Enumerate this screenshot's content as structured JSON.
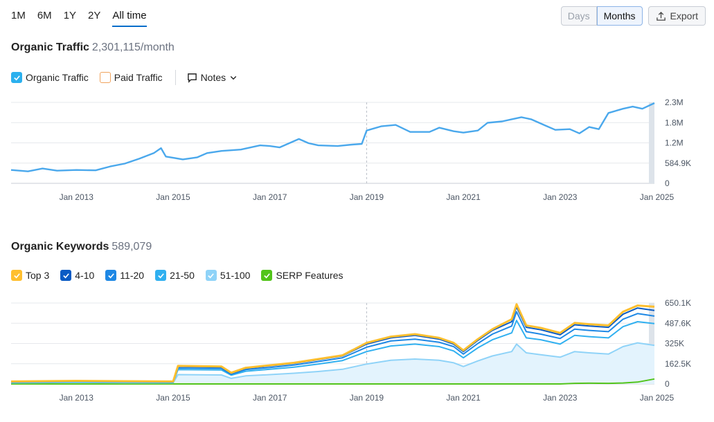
{
  "range_tabs": [
    "1M",
    "6M",
    "1Y",
    "2Y",
    "All time"
  ],
  "active_range": "All time",
  "granularity": {
    "days_label": "Days",
    "months_label": "Months",
    "active": "Months"
  },
  "export_label": "Export",
  "traffic": {
    "title": "Organic Traffic",
    "value": "2,301,115/month",
    "legend": [
      {
        "label": "Organic Traffic",
        "checked": true,
        "color": "#2bb0ee"
      },
      {
        "label": "Paid Traffic",
        "checked": false,
        "color": "#f0a35c"
      }
    ],
    "notes_label": "Notes"
  },
  "keywords": {
    "title": "Organic Keywords",
    "value": "589,079",
    "legend": [
      {
        "label": "Top 3",
        "color": "#ffbf2f"
      },
      {
        "label": "4-10",
        "color": "#0a5bc4"
      },
      {
        "label": "11-20",
        "color": "#1e88e5"
      },
      {
        "label": "21-50",
        "color": "#30b0f0"
      },
      {
        "label": "51-100",
        "color": "#8fd3f8"
      },
      {
        "label": "SERP Features",
        "color": "#52c41a"
      }
    ]
  },
  "chart_data": [
    {
      "type": "line",
      "title": "Organic Traffic",
      "x_ticks": [
        "Jan 2013",
        "Jan 2015",
        "Jan 2017",
        "Jan 2019",
        "Jan 2021",
        "Jan 2023",
        "Jan 2025"
      ],
      "y_ticks": [
        "0",
        "584.9K",
        "1.2M",
        "1.8M",
        "2.3M"
      ],
      "ylim": [
        0,
        2300000
      ],
      "x_range": [
        2011.65,
        2024.95
      ],
      "series": [
        {
          "name": "Organic Traffic",
          "color": "#4aa8ec",
          "points": [
            [
              2011.65,
              380000
            ],
            [
              2012.0,
              340000
            ],
            [
              2012.3,
              420000
            ],
            [
              2012.6,
              360000
            ],
            [
              2013.0,
              380000
            ],
            [
              2013.4,
              370000
            ],
            [
              2013.7,
              480000
            ],
            [
              2014.0,
              560000
            ],
            [
              2014.3,
              700000
            ],
            [
              2014.6,
              860000
            ],
            [
              2014.75,
              1000000
            ],
            [
              2014.85,
              760000
            ],
            [
              2015.2,
              680000
            ],
            [
              2015.5,
              740000
            ],
            [
              2015.7,
              860000
            ],
            [
              2016.0,
              920000
            ],
            [
              2016.4,
              960000
            ],
            [
              2016.8,
              1080000
            ],
            [
              2017.0,
              1060000
            ],
            [
              2017.2,
              1020000
            ],
            [
              2017.6,
              1260000
            ],
            [
              2017.8,
              1140000
            ],
            [
              2018.0,
              1080000
            ],
            [
              2018.4,
              1060000
            ],
            [
              2018.7,
              1100000
            ],
            [
              2018.9,
              1120000
            ],
            [
              2019.0,
              1500000
            ],
            [
              2019.3,
              1620000
            ],
            [
              2019.6,
              1660000
            ],
            [
              2019.9,
              1460000
            ],
            [
              2020.3,
              1460000
            ],
            [
              2020.5,
              1580000
            ],
            [
              2020.8,
              1480000
            ],
            [
              2021.0,
              1440000
            ],
            [
              2021.3,
              1500000
            ],
            [
              2021.5,
              1720000
            ],
            [
              2021.8,
              1760000
            ],
            [
              2022.0,
              1820000
            ],
            [
              2022.2,
              1880000
            ],
            [
              2022.4,
              1820000
            ],
            [
              2022.7,
              1640000
            ],
            [
              2022.9,
              1520000
            ],
            [
              2023.2,
              1540000
            ],
            [
              2023.4,
              1420000
            ],
            [
              2023.6,
              1600000
            ],
            [
              2023.8,
              1540000
            ],
            [
              2024.0,
              2000000
            ],
            [
              2024.3,
              2120000
            ],
            [
              2024.5,
              2180000
            ],
            [
              2024.7,
              2120000
            ],
            [
              2024.95,
              2280000
            ]
          ]
        }
      ]
    },
    {
      "type": "area",
      "title": "Organic Keywords",
      "x_ticks": [
        "Jan 2013",
        "Jan 2015",
        "Jan 2017",
        "Jan 2019",
        "Jan 2021",
        "Jan 2023",
        "Jan 2025"
      ],
      "y_ticks": [
        "0",
        "162.5K",
        "325K",
        "487.6K",
        "650.1K"
      ],
      "ylim": [
        0,
        650100
      ],
      "x_range": [
        2011.65,
        2024.95
      ],
      "x": [
        2011.65,
        2013.0,
        2014.0,
        2015.0,
        2015.1,
        2016.0,
        2016.2,
        2016.5,
        2017.0,
        2017.5,
        2018.0,
        2018.5,
        2019.0,
        2019.5,
        2020.0,
        2020.5,
        2020.8,
        2021.0,
        2021.3,
        2021.6,
        2022.0,
        2022.1,
        2022.3,
        2022.6,
        2023.0,
        2023.3,
        2023.6,
        2024.0,
        2024.3,
        2024.6,
        2024.95
      ],
      "series": [
        {
          "name": "Top 3",
          "color": "#ffbf2f",
          "values": [
            20000,
            25000,
            22000,
            20000,
            145000,
            140000,
            90000,
            130000,
            150000,
            170000,
            200000,
            230000,
            330000,
            380000,
            400000,
            370000,
            330000,
            270000,
            360000,
            440000,
            520000,
            640000,
            470000,
            450000,
            410000,
            490000,
            480000,
            470000,
            580000,
            630000,
            620000
          ]
        },
        {
          "name": "4-10",
          "color": "#0a5bc4",
          "values": [
            18000,
            23000,
            20000,
            18000,
            140000,
            135000,
            85000,
            125000,
            145000,
            165000,
            195000,
            225000,
            320000,
            370000,
            390000,
            360000,
            320000,
            260000,
            350000,
            430000,
            500000,
            620000,
            455000,
            435000,
            395000,
            475000,
            465000,
            455000,
            560000,
            610000,
            590000
          ]
        },
        {
          "name": "11-20",
          "color": "#1e88e5",
          "values": [
            16000,
            21000,
            18000,
            16000,
            128000,
            125000,
            78000,
            115000,
            132000,
            152000,
            180000,
            210000,
            295000,
            345000,
            360000,
            335000,
            300000,
            240000,
            325000,
            400000,
            465000,
            580000,
            420000,
            400000,
            365000,
            440000,
            430000,
            420000,
            520000,
            565000,
            545000
          ]
        },
        {
          "name": "21-50",
          "color": "#30b0f0",
          "values": [
            13000,
            17000,
            15000,
            13000,
            115000,
            112000,
            70000,
            102000,
            118000,
            135000,
            160000,
            188000,
            260000,
            305000,
            320000,
            300000,
            265000,
            210000,
            290000,
            355000,
            410000,
            510000,
            370000,
            355000,
            320000,
            390000,
            380000,
            370000,
            460000,
            500000,
            485000
          ]
        },
        {
          "name": "51-100",
          "color": "#8fd3f8",
          "values": [
            9000,
            12000,
            10000,
            9000,
            75000,
            72000,
            45000,
            65000,
            75000,
            86000,
            100000,
            118000,
            160000,
            190000,
            200000,
            190000,
            170000,
            140000,
            185000,
            225000,
            260000,
            320000,
            250000,
            235000,
            215000,
            260000,
            250000,
            240000,
            300000,
            330000,
            310000
          ]
        },
        {
          "name": "SERP Features",
          "color": "#52c41a",
          "values": [
            0,
            0,
            0,
            0,
            0,
            0,
            0,
            0,
            0,
            0,
            0,
            0,
            0,
            0,
            0,
            0,
            0,
            0,
            0,
            0,
            0,
            0,
            0,
            0,
            0,
            5000,
            6000,
            5000,
            8000,
            15000,
            40000
          ]
        }
      ]
    }
  ]
}
